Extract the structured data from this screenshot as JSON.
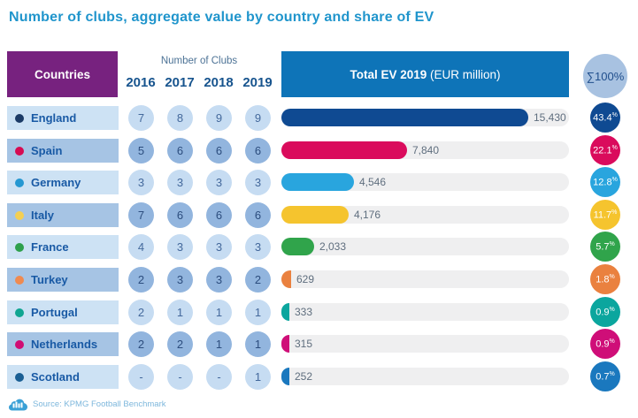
{
  "title": "Number of clubs, aggregate value by country and share of EV",
  "header": {
    "countries_label": "Countries",
    "clubs_label": "Number of Clubs",
    "years": [
      "2016",
      "2017",
      "2018",
      "2019"
    ],
    "ev_label_bold": "Total EV 2019",
    "ev_label_normal": " (EUR million)",
    "sum_label": "∑100%",
    "percent_sign": "%"
  },
  "colors": {
    "title": "#2095cc",
    "countries_header_bg": "#77227f",
    "ev_header_bg": "#0e74b8",
    "sum_circle_bg": "#a8c2e1",
    "row_band_light": "#cde2f4",
    "row_band_dark": "#a6c4e4",
    "bar_track": "#efeff0"
  },
  "rows": [
    {
      "country": "England",
      "dot_color": "#1c3b66",
      "color": "#0f4a92",
      "clubs": [
        "7",
        "8",
        "9",
        "9"
      ],
      "ev": 15430,
      "ev_label": "15,430",
      "share": "43.4"
    },
    {
      "country": "Spain",
      "dot_color": "#d60b52",
      "color": "#da0b5c",
      "clubs": [
        "5",
        "6",
        "6",
        "6"
      ],
      "ev": 7840,
      "ev_label": "7,840",
      "share": "22.1"
    },
    {
      "country": "Germany",
      "dot_color": "#2598d2",
      "color": "#29a5de",
      "clubs": [
        "3",
        "3",
        "3",
        "3"
      ],
      "ev": 4546,
      "ev_label": "4,546",
      "share": "12.8"
    },
    {
      "country": "Italy",
      "dot_color": "#f4cf52",
      "color": "#f5c42e",
      "clubs": [
        "7",
        "6",
        "6",
        "6"
      ],
      "ev": 4176,
      "ev_label": "4,176",
      "share": "11.7"
    },
    {
      "country": "France",
      "dot_color": "#2ea04c",
      "color": "#30a44b",
      "clubs": [
        "4",
        "3",
        "3",
        "3"
      ],
      "ev": 2033,
      "ev_label": "2,033",
      "share": "5.7"
    },
    {
      "country": "Turkey",
      "dot_color": "#ef8a50",
      "color": "#ea813f",
      "clubs": [
        "2",
        "3",
        "3",
        "2"
      ],
      "ev": 629,
      "ev_label": "629",
      "share": "1.8"
    },
    {
      "country": "Portugal",
      "dot_color": "#10a591",
      "color": "#0ba69e",
      "clubs": [
        "2",
        "1",
        "1",
        "1"
      ],
      "ev": 333,
      "ev_label": "333",
      "share": "0.9"
    },
    {
      "country": "Netherlands",
      "dot_color": "#d00d74",
      "color": "#cf0e78",
      "clubs": [
        "2",
        "2",
        "1",
        "1"
      ],
      "ev": 315,
      "ev_label": "315",
      "share": "0.9"
    },
    {
      "country": "Scotland",
      "dot_color": "#1a5f94",
      "color": "#1a78be",
      "clubs": [
        "-",
        "-",
        "-",
        "1"
      ],
      "ev": 252,
      "ev_label": "252",
      "share": "0.7"
    }
  ],
  "footer": {
    "source": "Source: KPMG Football Benchmark"
  },
  "chart_data": {
    "type": "bar",
    "title": "Number of clubs, aggregate value by country and share of EV",
    "categories": [
      "England",
      "Spain",
      "Germany",
      "Italy",
      "France",
      "Turkey",
      "Portugal",
      "Netherlands",
      "Scotland"
    ],
    "series": [
      {
        "name": "Number of Clubs 2016",
        "values": [
          7,
          5,
          3,
          7,
          4,
          2,
          2,
          2,
          null
        ]
      },
      {
        "name": "Number of Clubs 2017",
        "values": [
          8,
          6,
          3,
          6,
          3,
          3,
          1,
          2,
          null
        ]
      },
      {
        "name": "Number of Clubs 2018",
        "values": [
          9,
          6,
          3,
          6,
          3,
          3,
          1,
          1,
          null
        ]
      },
      {
        "name": "Number of Clubs 2019",
        "values": [
          9,
          6,
          3,
          6,
          3,
          2,
          1,
          1,
          1
        ]
      },
      {
        "name": "Total EV 2019 (EUR million)",
        "values": [
          15430,
          7840,
          4546,
          4176,
          2033,
          629,
          333,
          315,
          252
        ]
      },
      {
        "name": "Share of EV (%)",
        "values": [
          43.4,
          22.1,
          12.8,
          11.7,
          5.7,
          1.8,
          0.9,
          0.9,
          0.7
        ]
      }
    ],
    "xlabel": "Total EV 2019 (EUR million)",
    "ylabel": "Country",
    "xlim": [
      0,
      15430
    ],
    "grid": false,
    "legend_position": "none",
    "orientation": "horizontal",
    "source": "KPMG Football Benchmark"
  }
}
